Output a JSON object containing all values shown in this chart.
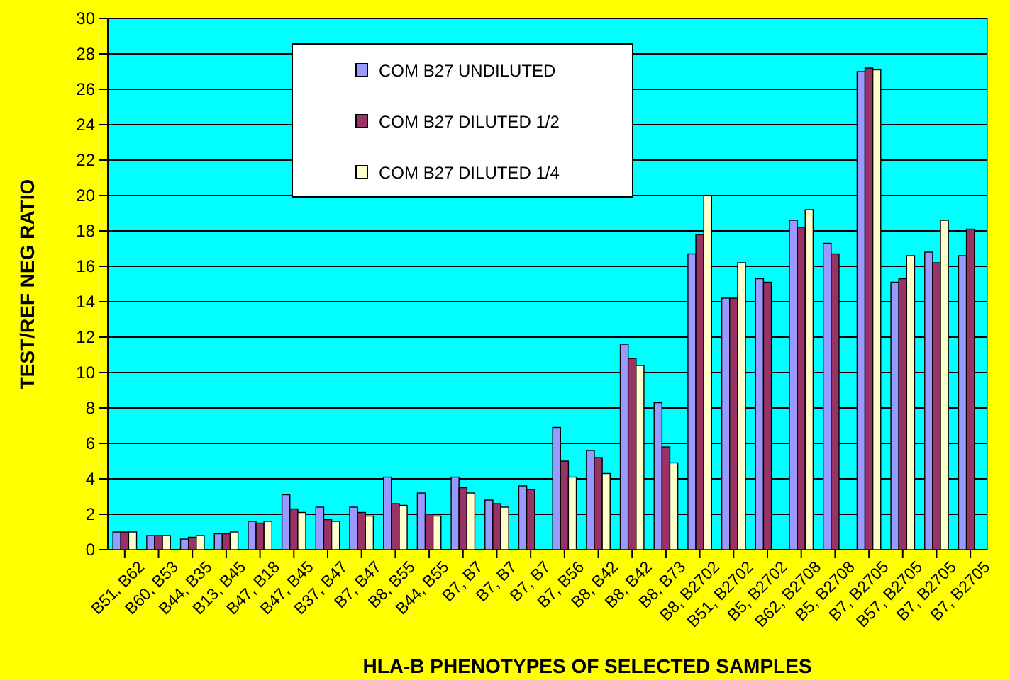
{
  "chart_data": {
    "type": "bar",
    "xlabel": "HLA-B  PHENOTYPES  OF  SELECTED  SAMPLES",
    "ylabel": "TEST/REF NEG  RATIO",
    "categories": [
      "B51, B62",
      "B60, B53",
      "B44, B35",
      "B13, B45",
      "B47, B18",
      "B47, B45",
      "B37, B47",
      "B7, B47",
      "B8, B55",
      "B44, B55",
      "B7, B7",
      "B7, B7",
      "B7, B7",
      "B7, B56",
      "B8, B42",
      "B8, B42",
      "B8, B73",
      "B8, B2702",
      "B51, B2702",
      "B5, B2702",
      "B62, B2708",
      "B5, B2708",
      "B7, B2705",
      "B57, B2705",
      "B7, B2705",
      "B7, B2705"
    ],
    "series": [
      {
        "name": "COM B27 UNDILUTED",
        "color": "#9999ff",
        "values": [
          1.0,
          0.8,
          0.6,
          0.9,
          1.6,
          3.1,
          2.4,
          2.4,
          4.1,
          3.2,
          4.1,
          2.8,
          3.6,
          6.9,
          5.6,
          11.6,
          8.3,
          16.7,
          14.2,
          15.3,
          18.6,
          17.3,
          27.0,
          15.1,
          16.8,
          16.6
        ]
      },
      {
        "name": "COM B27 DILUTED 1/2",
        "color": "#993366",
        "values": [
          1.0,
          0.8,
          0.7,
          0.9,
          1.5,
          2.3,
          1.7,
          2.1,
          2.6,
          2.0,
          3.5,
          2.6,
          3.4,
          5.0,
          5.2,
          10.8,
          5.8,
          17.8,
          14.2,
          15.1,
          18.2,
          16.7,
          27.2,
          15.3,
          16.2,
          18.1
        ]
      },
      {
        "name": "COM B27 DILUTED 1/4",
        "color": "#ffffcc",
        "values": [
          1.0,
          0.8,
          0.8,
          1.0,
          1.6,
          2.1,
          1.6,
          1.9,
          2.5,
          1.9,
          3.2,
          2.4,
          null,
          4.1,
          4.3,
          10.4,
          4.9,
          20.0,
          16.2,
          null,
          19.2,
          null,
          27.1,
          16.6,
          18.6,
          null
        ]
      }
    ],
    "ylim": [
      0,
      30
    ],
    "yticks": [
      0,
      2,
      4,
      6,
      8,
      10,
      12,
      14,
      16,
      18,
      20,
      22,
      24,
      26,
      28,
      30
    ],
    "grid": "y",
    "legend": "top"
  }
}
